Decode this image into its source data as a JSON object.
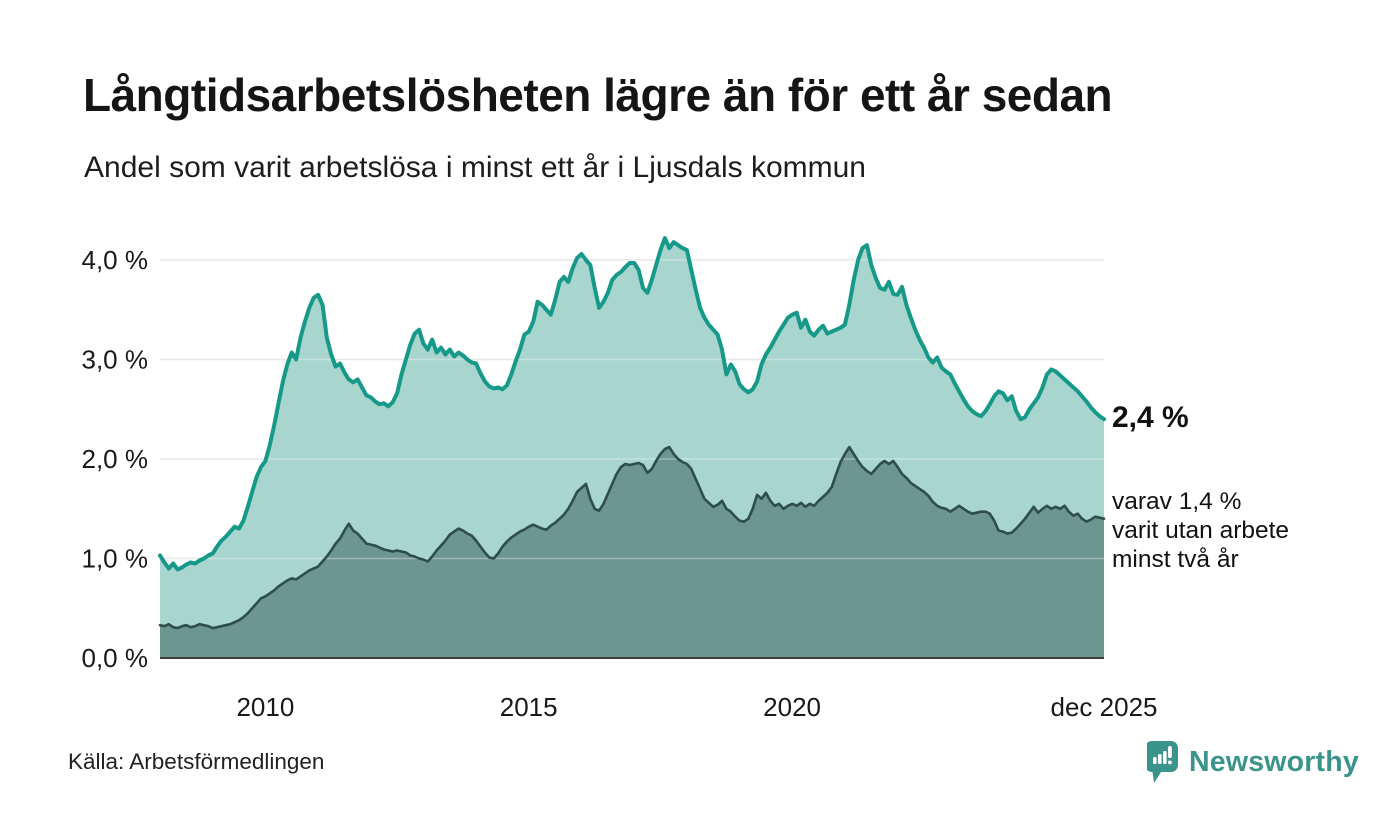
{
  "header": {
    "title": "Långtidsarbetslösheten lägre än för ett år sedan",
    "subtitle": "Andel som varit arbetslösa i minst ett år i Ljusdals kommun"
  },
  "colors": {
    "accent_teal": "#17998a",
    "fill_light": "#a8d5cd",
    "fill_dark": "#6e9690",
    "stroke_dark": "#2e4e48",
    "grid": "#dedede",
    "axis": "#3f3f3f",
    "text": "#191919",
    "logo_teal": "#3b948c"
  },
  "chart_data": {
    "type": "area",
    "title": "Långtidsarbetslösheten lägre än för ett år sedan",
    "subtitle": "Andel som varit arbetslösa i minst ett år i Ljusdals kommun",
    "y_unit": "%",
    "ylim": [
      0,
      4.35
    ],
    "grid": true,
    "legend_position": "right-annotations",
    "x_axis": {
      "start_year": 2008.0,
      "end_year": 2025.92,
      "frequency": "monthly"
    },
    "x_ticks": [
      {
        "label": "2010",
        "year": 2010
      },
      {
        "label": "2015",
        "year": 2015
      },
      {
        "label": "2020",
        "year": 2020
      },
      {
        "label": "dec 2025",
        "year": 2025.92
      }
    ],
    "y_ticks": [
      {
        "label": "4,0 %",
        "value": 4
      },
      {
        "label": "3,0 %",
        "value": 3
      },
      {
        "label": "2,0 %",
        "value": 2
      },
      {
        "label": "1,0 %",
        "value": 1
      },
      {
        "label": "0,0 %",
        "value": 0
      }
    ],
    "series": [
      {
        "name": "Andel arbetslösa minst ett år",
        "color": "#17998a",
        "fill": "#a8d5cd",
        "end_value": 2.4,
        "values": [
          1.03,
          0.96,
          0.9,
          0.95,
          0.89,
          0.91,
          0.94,
          0.96,
          0.95,
          0.98,
          1.0,
          1.03,
          1.05,
          1.12,
          1.18,
          1.22,
          1.27,
          1.32,
          1.3,
          1.38,
          1.52,
          1.67,
          1.82,
          1.92,
          1.98,
          2.14,
          2.34,
          2.56,
          2.78,
          2.95,
          3.07,
          3.0,
          3.22,
          3.38,
          3.52,
          3.62,
          3.65,
          3.55,
          3.22,
          3.05,
          2.93,
          2.96,
          2.87,
          2.8,
          2.77,
          2.8,
          2.72,
          2.64,
          2.62,
          2.58,
          2.55,
          2.56,
          2.53,
          2.57,
          2.66,
          2.85,
          3.0,
          3.15,
          3.26,
          3.3,
          3.16,
          3.1,
          3.2,
          3.07,
          3.12,
          3.05,
          3.1,
          3.03,
          3.07,
          3.04,
          3.0,
          2.97,
          2.96,
          2.86,
          2.78,
          2.73,
          2.71,
          2.72,
          2.7,
          2.74,
          2.85,
          2.98,
          3.1,
          3.25,
          3.28,
          3.38,
          3.58,
          3.55,
          3.5,
          3.45,
          3.6,
          3.78,
          3.83,
          3.78,
          3.92,
          4.02,
          4.06,
          4.0,
          3.95,
          3.72,
          3.52,
          3.58,
          3.67,
          3.8,
          3.85,
          3.88,
          3.93,
          3.97,
          3.97,
          3.9,
          3.72,
          3.67,
          3.8,
          3.95,
          4.1,
          4.22,
          4.12,
          4.18,
          4.15,
          4.12,
          4.1,
          3.9,
          3.7,
          3.52,
          3.42,
          3.35,
          3.3,
          3.25,
          3.1,
          2.85,
          2.95,
          2.88,
          2.75,
          2.7,
          2.67,
          2.7,
          2.78,
          2.95,
          3.05,
          3.12,
          3.2,
          3.28,
          3.35,
          3.42,
          3.45,
          3.47,
          3.32,
          3.4,
          3.28,
          3.24,
          3.3,
          3.34,
          3.26,
          3.28,
          3.3,
          3.32,
          3.35,
          3.55,
          3.8,
          4.0,
          4.12,
          4.15,
          3.95,
          3.82,
          3.72,
          3.7,
          3.78,
          3.66,
          3.65,
          3.73,
          3.55,
          3.42,
          3.3,
          3.2,
          3.12,
          3.02,
          2.97,
          3.02,
          2.92,
          2.88,
          2.85,
          2.76,
          2.68,
          2.6,
          2.53,
          2.48,
          2.45,
          2.43,
          2.48,
          2.55,
          2.63,
          2.68,
          2.66,
          2.59,
          2.63,
          2.48,
          2.4,
          2.42,
          2.5,
          2.56,
          2.62,
          2.72,
          2.85,
          2.9,
          2.88,
          2.84,
          2.8,
          2.76,
          2.72,
          2.68,
          2.63,
          2.58,
          2.52,
          2.47,
          2.43,
          2.4
        ]
      },
      {
        "name": "Andel utan arbete minst två år",
        "color": "#2e4e48",
        "fill": "#6e9690",
        "end_value": 1.4,
        "values": [
          0.33,
          0.32,
          0.34,
          0.31,
          0.3,
          0.32,
          0.33,
          0.31,
          0.32,
          0.34,
          0.33,
          0.32,
          0.3,
          0.31,
          0.32,
          0.33,
          0.34,
          0.36,
          0.38,
          0.41,
          0.45,
          0.5,
          0.55,
          0.6,
          0.62,
          0.65,
          0.68,
          0.72,
          0.75,
          0.78,
          0.8,
          0.79,
          0.82,
          0.85,
          0.88,
          0.9,
          0.92,
          0.97,
          1.02,
          1.08,
          1.15,
          1.2,
          1.28,
          1.35,
          1.28,
          1.25,
          1.2,
          1.15,
          1.14,
          1.13,
          1.11,
          1.09,
          1.08,
          1.07,
          1.08,
          1.07,
          1.06,
          1.03,
          1.02,
          1.0,
          0.99,
          0.97,
          1.02,
          1.08,
          1.13,
          1.18,
          1.24,
          1.27,
          1.3,
          1.28,
          1.25,
          1.23,
          1.18,
          1.12,
          1.06,
          1.01,
          1.0,
          1.05,
          1.12,
          1.17,
          1.21,
          1.24,
          1.27,
          1.29,
          1.32,
          1.34,
          1.32,
          1.3,
          1.29,
          1.33,
          1.36,
          1.4,
          1.44,
          1.5,
          1.58,
          1.67,
          1.71,
          1.75,
          1.6,
          1.5,
          1.48,
          1.55,
          1.65,
          1.75,
          1.85,
          1.92,
          1.95,
          1.94,
          1.95,
          1.96,
          1.94,
          1.86,
          1.9,
          1.98,
          2.05,
          2.1,
          2.12,
          2.05,
          2.0,
          1.97,
          1.95,
          1.9,
          1.8,
          1.7,
          1.6,
          1.56,
          1.52,
          1.54,
          1.58,
          1.5,
          1.47,
          1.42,
          1.38,
          1.37,
          1.4,
          1.5,
          1.64,
          1.6,
          1.66,
          1.58,
          1.53,
          1.55,
          1.5,
          1.53,
          1.55,
          1.53,
          1.56,
          1.52,
          1.55,
          1.53,
          1.58,
          1.62,
          1.66,
          1.72,
          1.85,
          1.97,
          2.05,
          2.12,
          2.05,
          1.98,
          1.92,
          1.88,
          1.85,
          1.9,
          1.95,
          1.98,
          1.95,
          1.98,
          1.92,
          1.85,
          1.81,
          1.76,
          1.73,
          1.7,
          1.67,
          1.63,
          1.57,
          1.53,
          1.51,
          1.5,
          1.47,
          1.5,
          1.53,
          1.5,
          1.47,
          1.45,
          1.46,
          1.47,
          1.47,
          1.45,
          1.38,
          1.28,
          1.27,
          1.25,
          1.26,
          1.3,
          1.35,
          1.4,
          1.46,
          1.52,
          1.46,
          1.5,
          1.53,
          1.5,
          1.52,
          1.5,
          1.53,
          1.47,
          1.43,
          1.45,
          1.4,
          1.37,
          1.39,
          1.42,
          1.41,
          1.4
        ]
      }
    ],
    "annotations": {
      "end_value_label": "2,4 %",
      "secondary_lines": [
        "varav 1,4 %",
        "varit utan arbete",
        "minst två år"
      ]
    }
  },
  "footer": {
    "source": "Källa: Arbetsförmedlingen",
    "logo_text": "Newsworthy"
  }
}
